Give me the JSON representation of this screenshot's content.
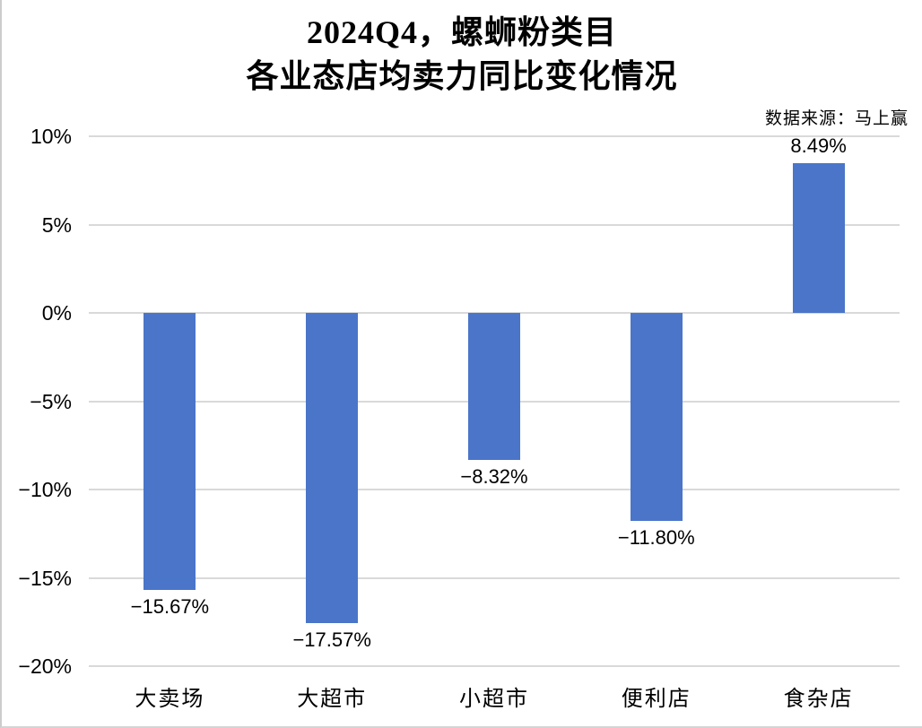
{
  "page": {
    "title_line1": "2024Q4，螺蛳粉类目",
    "title_line2": "各业态店均卖力同比变化情况",
    "source_note": "数据来源：马上赢"
  },
  "chart_data": {
    "type": "bar",
    "title": "2024Q4，螺蛳粉类目 各业态店均卖力同比变化情况",
    "source": "数据来源：马上赢",
    "categories": [
      "大卖场",
      "大超市",
      "小超市",
      "便利店",
      "食杂店"
    ],
    "values": [
      -15.67,
      -17.57,
      -8.32,
      -11.8,
      8.49
    ],
    "value_labels": [
      "−15.67%",
      "−17.57%",
      "−8.32%",
      "−11.80%",
      "8.49%"
    ],
    "xlabel": "",
    "ylabel": "",
    "ylim": [
      -20,
      10
    ],
    "yticks": [
      10,
      5,
      0,
      -5,
      -10,
      -15,
      -20
    ],
    "ytick_labels": [
      "10%",
      "5%",
      "0%",
      "−5%",
      "−10%",
      "−15%",
      "−20%"
    ],
    "grid": true,
    "legend": "none",
    "bar_color": "#4A75C9",
    "gridline_color": "#D9D9D9"
  }
}
